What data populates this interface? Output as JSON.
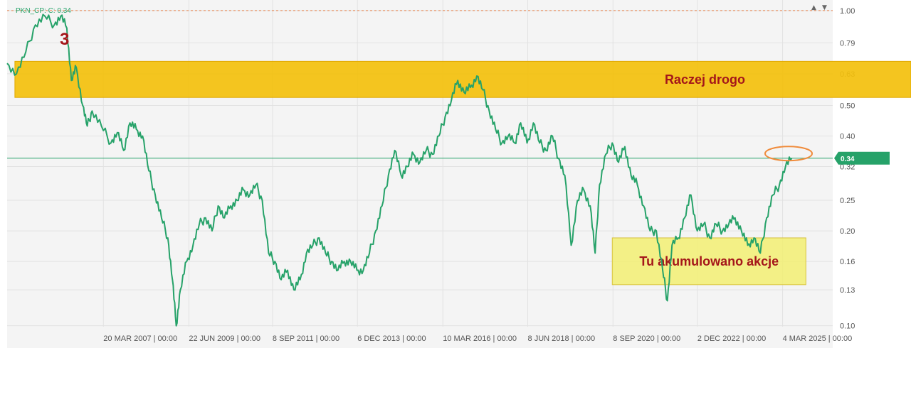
{
  "chart_data": {
    "type": "line",
    "title": "",
    "legend": "PKN_CP: C: 0.34",
    "scale": "log",
    "ylim": [
      0.085,
      1.08
    ],
    "xlim": [
      "2004-09-01",
      "2026-07-01"
    ],
    "grid": true,
    "y_ticks": [
      "1.00",
      "0.79",
      "0.63",
      "0.50",
      "0.40",
      "0.32",
      "0.25",
      "0.20",
      "0.16",
      "0.13",
      "0.10"
    ],
    "x_ticks": [
      {
        "date": "2007-03-20",
        "label": "20 MAR 2007 | 00:00"
      },
      {
        "date": "2009-06-22",
        "label": "22 JUN 2009 | 00:00"
      },
      {
        "date": "2011-09-08",
        "label": "8 SEP 2011 | 00:00"
      },
      {
        "date": "2013-12-06",
        "label": "6 DEC 2013 | 00:00"
      },
      {
        "date": "2016-03-10",
        "label": "10 MAR 2016 | 00:00"
      },
      {
        "date": "2018-06-08",
        "label": "8 JUN 2018 | 00:00"
      },
      {
        "date": "2020-09-08",
        "label": "8 SEP 2020 | 00:00"
      },
      {
        "date": "2022-12-02",
        "label": "2 DEC 2022 | 00:00"
      },
      {
        "date": "2025-03-04",
        "label": "4 MAR 2025 | 00:00"
      }
    ],
    "current_value": "0.34",
    "reference_level": 1.0,
    "series": [
      {
        "color": "#26a269",
        "points": [
          [
            "2004-09-01",
            0.68
          ],
          [
            "2004-12-01",
            0.63
          ],
          [
            "2005-03-01",
            0.74
          ],
          [
            "2005-06-01",
            0.9
          ],
          [
            "2005-09-01",
            0.96
          ],
          [
            "2005-12-01",
            0.9
          ],
          [
            "2006-02-01",
            0.96
          ],
          [
            "2006-04-01",
            0.88
          ],
          [
            "2006-05-15",
            0.6
          ],
          [
            "2006-07-01",
            0.66
          ],
          [
            "2006-09-01",
            0.5
          ],
          [
            "2006-10-15",
            0.43
          ],
          [
            "2006-12-01",
            0.48
          ],
          [
            "2007-03-01",
            0.43
          ],
          [
            "2007-06-01",
            0.38
          ],
          [
            "2007-08-01",
            0.41
          ],
          [
            "2007-10-01",
            0.36
          ],
          [
            "2007-12-01",
            0.44
          ],
          [
            "2008-02-01",
            0.42
          ],
          [
            "2008-04-01",
            0.4
          ],
          [
            "2008-06-01",
            0.31
          ],
          [
            "2008-08-01",
            0.26
          ],
          [
            "2008-10-01",
            0.22
          ],
          [
            "2008-12-01",
            0.19
          ],
          [
            "2009-01-15",
            0.14
          ],
          [
            "2009-02-20",
            0.1
          ],
          [
            "2009-04-01",
            0.13
          ],
          [
            "2009-06-01",
            0.16
          ],
          [
            "2009-08-01",
            0.18
          ],
          [
            "2009-10-01",
            0.21
          ],
          [
            "2009-12-01",
            0.22
          ],
          [
            "2010-02-01",
            0.2
          ],
          [
            "2010-04-01",
            0.24
          ],
          [
            "2010-06-01",
            0.22
          ],
          [
            "2010-08-01",
            0.24
          ],
          [
            "2010-10-01",
            0.25
          ],
          [
            "2010-12-01",
            0.27
          ],
          [
            "2011-02-01",
            0.26
          ],
          [
            "2011-04-01",
            0.28
          ],
          [
            "2011-06-01",
            0.25
          ],
          [
            "2011-08-01",
            0.17
          ],
          [
            "2011-10-01",
            0.16
          ],
          [
            "2011-12-01",
            0.14
          ],
          [
            "2012-02-01",
            0.15
          ],
          [
            "2012-04-01",
            0.13
          ],
          [
            "2012-06-01",
            0.14
          ],
          [
            "2012-08-01",
            0.17
          ],
          [
            "2012-10-01",
            0.18
          ],
          [
            "2012-12-01",
            0.19
          ],
          [
            "2013-02-01",
            0.17
          ],
          [
            "2013-04-01",
            0.16
          ],
          [
            "2013-06-01",
            0.15
          ],
          [
            "2013-08-01",
            0.16
          ],
          [
            "2013-10-01",
            0.16
          ],
          [
            "2013-12-01",
            0.15
          ],
          [
            "2014-02-01",
            0.15
          ],
          [
            "2014-04-01",
            0.17
          ],
          [
            "2014-06-01",
            0.2
          ],
          [
            "2014-08-01",
            0.24
          ],
          [
            "2014-10-01",
            0.3
          ],
          [
            "2014-12-01",
            0.36
          ],
          [
            "2015-02-01",
            0.3
          ],
          [
            "2015-04-01",
            0.32
          ],
          [
            "2015-06-01",
            0.35
          ],
          [
            "2015-08-01",
            0.33
          ],
          [
            "2015-10-01",
            0.36
          ],
          [
            "2015-12-01",
            0.35
          ],
          [
            "2016-02-01",
            0.4
          ],
          [
            "2016-04-01",
            0.46
          ],
          [
            "2016-06-01",
            0.52
          ],
          [
            "2016-08-01",
            0.6
          ],
          [
            "2016-10-01",
            0.55
          ],
          [
            "2016-12-01",
            0.57
          ],
          [
            "2017-02-01",
            0.62
          ],
          [
            "2017-04-01",
            0.56
          ],
          [
            "2017-06-01",
            0.48
          ],
          [
            "2017-08-01",
            0.42
          ],
          [
            "2017-10-01",
            0.38
          ],
          [
            "2017-12-01",
            0.4
          ],
          [
            "2018-02-01",
            0.38
          ],
          [
            "2018-04-01",
            0.44
          ],
          [
            "2018-06-01",
            0.38
          ],
          [
            "2018-08-01",
            0.44
          ],
          [
            "2018-10-01",
            0.38
          ],
          [
            "2018-12-01",
            0.36
          ],
          [
            "2019-02-01",
            0.4
          ],
          [
            "2019-04-01",
            0.34
          ],
          [
            "2019-06-01",
            0.3
          ],
          [
            "2019-08-01",
            0.18
          ],
          [
            "2019-10-01",
            0.25
          ],
          [
            "2019-12-01",
            0.27
          ],
          [
            "2020-02-01",
            0.24
          ],
          [
            "2020-03-20",
            0.17
          ],
          [
            "2020-05-01",
            0.28
          ],
          [
            "2020-07-01",
            0.35
          ],
          [
            "2020-09-01",
            0.38
          ],
          [
            "2020-11-01",
            0.33
          ],
          [
            "2021-01-01",
            0.37
          ],
          [
            "2021-03-01",
            0.3
          ],
          [
            "2021-05-01",
            0.28
          ],
          [
            "2021-07-01",
            0.24
          ],
          [
            "2021-09-01",
            0.2
          ],
          [
            "2021-11-01",
            0.2
          ],
          [
            "2022-01-01",
            0.15
          ],
          [
            "2022-02-15",
            0.12
          ],
          [
            "2022-04-01",
            0.18
          ],
          [
            "2022-06-01",
            0.19
          ],
          [
            "2022-08-01",
            0.22
          ],
          [
            "2022-10-01",
            0.26
          ],
          [
            "2022-12-01",
            0.2
          ],
          [
            "2023-02-01",
            0.21
          ],
          [
            "2023-04-01",
            0.19
          ],
          [
            "2023-06-01",
            0.21
          ],
          [
            "2023-08-01",
            0.2
          ],
          [
            "2023-10-01",
            0.21
          ],
          [
            "2023-12-01",
            0.22
          ],
          [
            "2024-02-01",
            0.2
          ],
          [
            "2024-04-01",
            0.18
          ],
          [
            "2024-06-01",
            0.19
          ],
          [
            "2024-08-01",
            0.17
          ],
          [
            "2024-10-01",
            0.22
          ],
          [
            "2024-12-01",
            0.26
          ],
          [
            "2025-02-01",
            0.28
          ],
          [
            "2025-04-01",
            0.32
          ],
          [
            "2025-06-01",
            0.34
          ]
        ]
      }
    ],
    "annotations": [
      {
        "kind": "zone",
        "label": "Raczej drogo",
        "ymin": 0.53,
        "ymax": 0.69,
        "x_from": "2004-11-15",
        "color": "#f3c00c"
      },
      {
        "kind": "zone",
        "label": "Tu akumulowano akcje",
        "ymin": 0.135,
        "ymax": 0.19,
        "x_from": "2020-09-01",
        "x_to": "2025-10-15",
        "color": "#f2ef72"
      },
      {
        "kind": "marker",
        "label": "3",
        "color": "#a4161a"
      },
      {
        "kind": "ellipse",
        "date": "2025-05-01",
        "value": 0.35,
        "color": "#f08c3c"
      }
    ]
  }
}
